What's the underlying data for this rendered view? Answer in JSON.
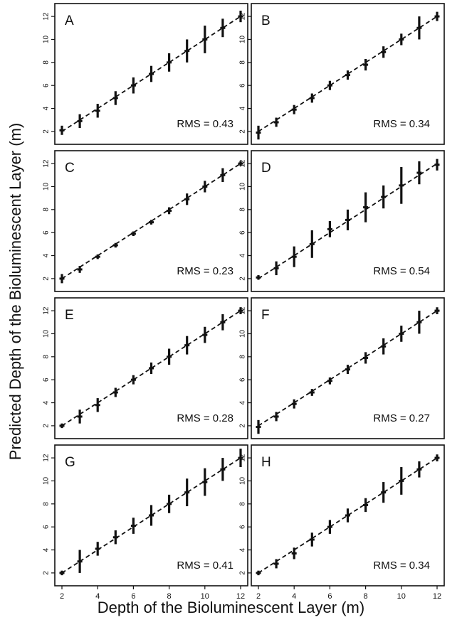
{
  "figure": {
    "ylabel": "Predicted Depth of the Bioluminescent Layer (m)",
    "xlabel": "Depth of the Bioluminescent Layer (m)"
  },
  "chart_data": [
    {
      "type": "scatter",
      "panel": "A",
      "rms_label": "RMS = 0.43",
      "x": [
        2,
        3,
        4,
        5,
        6,
        7,
        8,
        9,
        10,
        11,
        12
      ],
      "y": [
        2.1,
        2.9,
        3.8,
        4.9,
        6.0,
        7.0,
        8.0,
        9.0,
        10.0,
        11.0,
        12.0
      ],
      "err": [
        0.4,
        0.6,
        0.6,
        0.6,
        0.7,
        0.7,
        0.8,
        1.0,
        1.2,
        0.8,
        0.5
      ],
      "xlim": [
        2,
        12
      ],
      "ylim": [
        1.5,
        12.5
      ],
      "xticks": [
        2,
        4,
        6,
        8,
        10,
        12
      ],
      "yticks": [
        2,
        4,
        6,
        8,
        10,
        12
      ],
      "diagonal": "dashed",
      "grid": false
    },
    {
      "type": "scatter",
      "panel": "B",
      "rms_label": "RMS = 0.34",
      "x": [
        2,
        3,
        4,
        5,
        6,
        7,
        8,
        9,
        10,
        11,
        12
      ],
      "y": [
        1.9,
        2.8,
        3.9,
        4.9,
        6.0,
        6.9,
        7.8,
        8.9,
        10.0,
        11.0,
        12.0
      ],
      "err": [
        0.6,
        0.4,
        0.4,
        0.4,
        0.4,
        0.4,
        0.5,
        0.5,
        0.5,
        1.0,
        0.4
      ],
      "xlim": [
        2,
        12
      ],
      "ylim": [
        1.5,
        12.5
      ],
      "xticks": [
        2,
        4,
        6,
        8,
        10,
        12
      ],
      "yticks": [
        2,
        4,
        6,
        8,
        10,
        12
      ],
      "diagonal": "dashed",
      "grid": false
    },
    {
      "type": "scatter",
      "panel": "C",
      "rms_label": "RMS = 0.23",
      "x": [
        2,
        3,
        4,
        5,
        6,
        7,
        8,
        9,
        10,
        11,
        12
      ],
      "y": [
        2.0,
        2.8,
        3.9,
        4.9,
        5.9,
        6.9,
        7.9,
        8.9,
        10.0,
        11.0,
        12.0
      ],
      "err": [
        0.4,
        0.3,
        0.2,
        0.2,
        0.2,
        0.2,
        0.3,
        0.5,
        0.5,
        0.6,
        0.2
      ],
      "xlim": [
        2,
        12
      ],
      "ylim": [
        1.5,
        12.5
      ],
      "xticks": [
        2,
        4,
        6,
        8,
        10,
        12
      ],
      "yticks": [
        2,
        4,
        6,
        8,
        10,
        12
      ],
      "diagonal": "dashed",
      "grid": false
    },
    {
      "type": "scatter",
      "panel": "D",
      "rms_label": "RMS = 0.54",
      "x": [
        2,
        3,
        4,
        5,
        6,
        7,
        8,
        9,
        10,
        11,
        12
      ],
      "y": [
        2.1,
        2.9,
        3.9,
        5.0,
        6.3,
        7.1,
        8.2,
        9.1,
        10.1,
        11.2,
        11.9
      ],
      "err": [
        0.2,
        0.6,
        0.9,
        1.2,
        0.7,
        0.9,
        1.3,
        1.0,
        1.6,
        1.0,
        0.5
      ],
      "xlim": [
        2,
        12
      ],
      "ylim": [
        1.5,
        12.5
      ],
      "xticks": [
        2,
        4,
        6,
        8,
        10,
        12
      ],
      "yticks": [
        2,
        4,
        6,
        8,
        10,
        12
      ],
      "diagonal": "dashed",
      "grid": false
    },
    {
      "type": "scatter",
      "panel": "E",
      "rms_label": "RMS = 0.28",
      "x": [
        2,
        3,
        4,
        5,
        6,
        7,
        8,
        9,
        10,
        11,
        12
      ],
      "y": [
        2.0,
        2.8,
        3.8,
        4.9,
        6.0,
        7.0,
        8.0,
        9.0,
        9.9,
        11.0,
        12.0
      ],
      "err": [
        0.2,
        0.6,
        0.6,
        0.4,
        0.4,
        0.5,
        0.7,
        0.8,
        0.7,
        0.7,
        0.3
      ],
      "xlim": [
        2,
        12
      ],
      "ylim": [
        1.5,
        12.5
      ],
      "xticks": [
        2,
        4,
        6,
        8,
        10,
        12
      ],
      "yticks": [
        2,
        4,
        6,
        8,
        10,
        12
      ],
      "diagonal": "dashed",
      "grid": false
    },
    {
      "type": "scatter",
      "panel": "F",
      "rms_label": "RMS = 0.27",
      "x": [
        2,
        3,
        4,
        5,
        6,
        7,
        8,
        9,
        10,
        11,
        12
      ],
      "y": [
        1.9,
        2.8,
        3.9,
        4.9,
        5.9,
        6.9,
        7.9,
        8.9,
        10.0,
        11.0,
        12.0
      ],
      "err": [
        0.6,
        0.4,
        0.4,
        0.3,
        0.3,
        0.4,
        0.5,
        0.7,
        0.7,
        1.0,
        0.3
      ],
      "xlim": [
        2,
        12
      ],
      "ylim": [
        1.5,
        12.5
      ],
      "xticks": [
        2,
        4,
        6,
        8,
        10,
        12
      ],
      "yticks": [
        2,
        4,
        6,
        8,
        10,
        12
      ],
      "diagonal": "dashed",
      "grid": false
    },
    {
      "type": "scatter",
      "panel": "G",
      "rms_label": "RMS = 0.41",
      "x": [
        2,
        3,
        4,
        5,
        6,
        7,
        8,
        9,
        10,
        11,
        12
      ],
      "y": [
        2.0,
        3.0,
        4.1,
        5.1,
        6.1,
        7.0,
        8.0,
        9.0,
        9.9,
        11.0,
        12.0
      ],
      "err": [
        0.2,
        1.0,
        0.6,
        0.6,
        0.7,
        0.9,
        0.8,
        1.2,
        1.2,
        1.0,
        0.8
      ],
      "xlim": [
        2,
        12
      ],
      "ylim": [
        1.5,
        12.5
      ],
      "xticks": [
        2,
        4,
        6,
        8,
        10,
        12
      ],
      "yticks": [
        2,
        4,
        6,
        8,
        10,
        12
      ],
      "diagonal": "dashed",
      "grid": false
    },
    {
      "type": "scatter",
      "panel": "H",
      "rms_label": "RMS = 0.34",
      "x": [
        2,
        3,
        4,
        5,
        6,
        7,
        8,
        9,
        10,
        11,
        12
      ],
      "y": [
        2.0,
        2.8,
        3.7,
        4.9,
        6.0,
        7.0,
        7.9,
        9.0,
        10.0,
        11.0,
        12.0
      ],
      "err": [
        0.2,
        0.4,
        0.5,
        0.6,
        0.6,
        0.6,
        0.6,
        0.9,
        1.2,
        0.7,
        0.3
      ],
      "xlim": [
        2,
        12
      ],
      "ylim": [
        1.5,
        12.5
      ],
      "xticks": [
        2,
        4,
        6,
        8,
        10,
        12
      ],
      "yticks": [
        2,
        4,
        6,
        8,
        10,
        12
      ],
      "diagonal": "dashed",
      "grid": false
    }
  ]
}
